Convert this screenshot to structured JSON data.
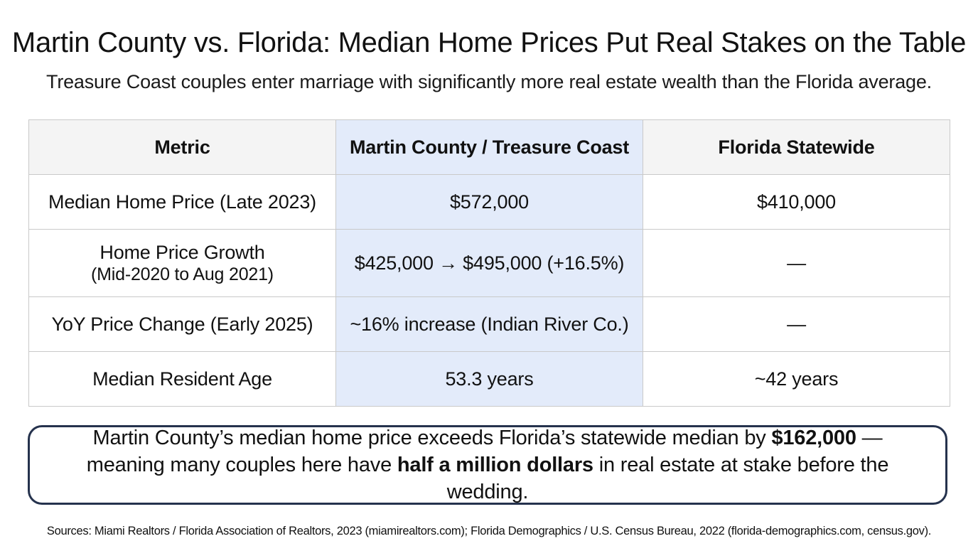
{
  "chart_data": {
    "type": "table",
    "title": "Martin County vs. Florida: Median Home Prices Put Real Stakes on the Table",
    "subtitle": "Treasure Coast couples enter marriage with significantly more real estate wealth than the Florida average.",
    "columns": [
      "Metric",
      "Martin County / Treasure Coast",
      "Florida Statewide"
    ],
    "rows": [
      {
        "metric": "Median Home Price (Late 2023)",
        "metric_note": "",
        "martin": "$572,000",
        "florida": "$410,000"
      },
      {
        "metric": "Home Price Growth",
        "metric_note": "(Mid-2020 to Aug 2021)",
        "martin": "$425,000 → $495,000 (+16.5%)",
        "florida": "—"
      },
      {
        "metric": "YoY Price Change (Early 2025)",
        "metric_note": "",
        "martin": "~16% increase (Indian River Co.)",
        "florida": "—"
      },
      {
        "metric": "Median Resident Age",
        "metric_note": "",
        "martin": "53.3 years",
        "florida": "~42 years"
      }
    ],
    "highlight_column": 1
  },
  "callout": {
    "part1": "Martin County’s median home price exceeds Florida’s statewide median by ",
    "bold1": "$162,000",
    "part2": " — meaning many couples here have ",
    "bold2": "half a million dollars",
    "part3": " in real estate at stake before the wedding."
  },
  "sources": "Sources: Miami Realtors / Florida Association of Realtors, 2023 (miamirealtors.com); Florida Demographics / U.S. Census Bureau, 2022 (florida-demographics.com, census.gov).",
  "colors": {
    "highlight_column": "#e3ebfa",
    "header_background": "#f4f4f4",
    "grid_lines": "#c9c9c9",
    "callout_border": "#25324d",
    "text": "#111111"
  }
}
